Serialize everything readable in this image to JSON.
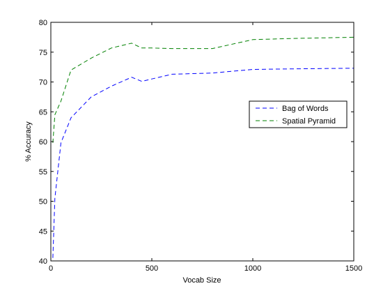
{
  "chart_data": {
    "type": "line",
    "title": "",
    "xlabel": "Vocab Size",
    "ylabel": "% Accuracy",
    "xlim": [
      0,
      1500
    ],
    "ylim": [
      40,
      80
    ],
    "xticks": [
      0,
      500,
      1000,
      1500
    ],
    "yticks": [
      40,
      45,
      50,
      55,
      60,
      65,
      70,
      75,
      80
    ],
    "grid": false,
    "legend_position": "right",
    "series": [
      {
        "name": "Bag of Words",
        "color": "#0000ff",
        "line_style": "dashed",
        "x": [
          10,
          20,
          50,
          100,
          200,
          300,
          400,
          450,
          500,
          600,
          800,
          1000,
          1200,
          1500
        ],
        "y": [
          40.5,
          50.5,
          59.8,
          64.0,
          67.5,
          69.3,
          70.8,
          70.1,
          70.5,
          71.3,
          71.5,
          72.1,
          72.2,
          72.3
        ]
      },
      {
        "name": "Spatial Pyramid",
        "color": "#008000",
        "line_style": "dashed",
        "x": [
          10,
          20,
          50,
          100,
          200,
          300,
          400,
          450,
          500,
          600,
          800,
          1000,
          1200,
          1500
        ],
        "y": [
          59.8,
          64.5,
          66.8,
          72.0,
          74.0,
          75.7,
          76.5,
          75.7,
          75.7,
          75.6,
          75.6,
          77.1,
          77.3,
          77.5
        ]
      }
    ]
  }
}
